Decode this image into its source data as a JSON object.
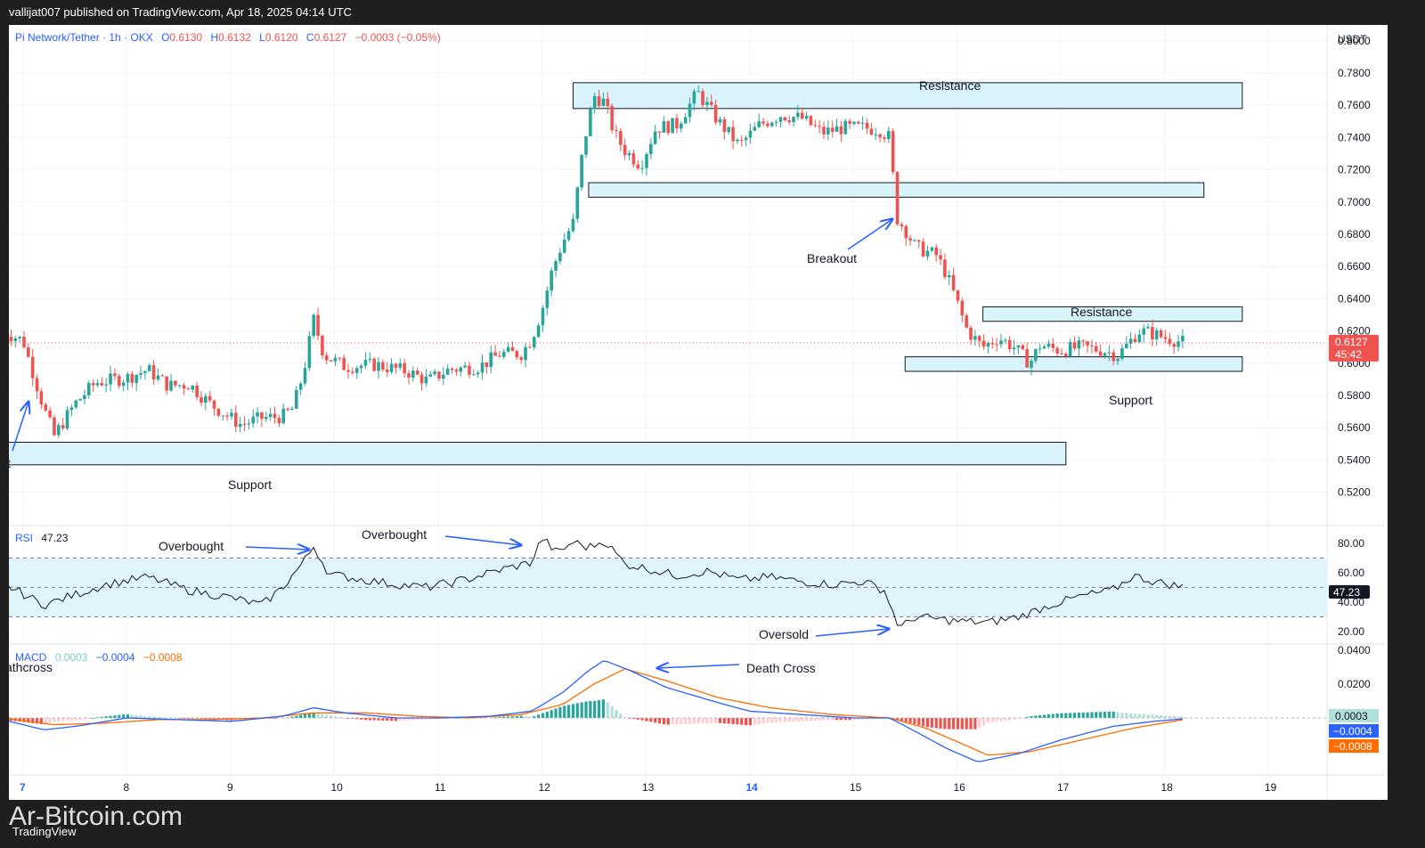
{
  "header": {
    "publisher": "vallijat007 published on TradingView.com, Apr 18, 2025 04:14 UTC"
  },
  "legend": {
    "symbol": "Pi Network/Tether · 1h · OKX",
    "o_label": "O",
    "o": "0.6130",
    "h_label": "H",
    "h": "0.6132",
    "l_label": "L",
    "l": "0.6120",
    "c_label": "C",
    "c": "0.6127",
    "change": "−0.0003 (−0.05%)"
  },
  "currency": "USDT",
  "price_badge": {
    "price": "0.6127",
    "countdown": "45:42"
  },
  "annotations": {
    "resistance_top": "Resistance",
    "resistance_right": "Resistance",
    "support_bottom": "Support",
    "support_right": "Support",
    "breakout": "Breakout",
    "breakout_left_fragment": "t",
    "overbought_1": "Overbought",
    "overbought_2": "Overbought",
    "oversold": "Oversold",
    "death_cross": "Death Cross",
    "deathcross_fragment": "athcross"
  },
  "rsi_legend": {
    "label": "RSI",
    "value": "47.23"
  },
  "macd_legend": {
    "label": "MACD",
    "hist": "0.0003",
    "macd": "−0.0004",
    "signal": "−0.0008"
  },
  "macd_badges": {
    "hist": "0.0003",
    "macd": "−0.0004",
    "signal": "−0.0008"
  },
  "rsi_badge": "47.23",
  "footer": {
    "watermark": "Ar-Bitcoin.com",
    "logo": "TradingView"
  },
  "colors": {
    "up": "#26a69a",
    "down": "#ef5350",
    "zone_fill": "#d9f3fa",
    "macd_line": "#2962ff",
    "signal_line": "#ff6d00",
    "rsi_band": "#e0f5fb",
    "arrow": "#2962ff",
    "price_line": "#ef5350"
  },
  "chart_data": {
    "type": "candlestick",
    "interval": "1h",
    "price_axis": {
      "ticks": [
        "0.8000",
        "0.7800",
        "0.7600",
        "0.7400",
        "0.7200",
        "0.7000",
        "0.6800",
        "0.6600",
        "0.6400",
        "0.6200",
        "0.6000",
        "0.5800",
        "0.5600",
        "0.5400",
        "0.5200"
      ],
      "ylim": [
        0.51,
        0.81
      ]
    },
    "rsi_axis": {
      "ticks": [
        "80.00",
        "60.00",
        "40.00",
        "20.00"
      ],
      "overbought": 70,
      "oversold": 30
    },
    "macd_axis": {
      "ticks": [
        "0.0400",
        "0.0200"
      ]
    },
    "time_axis": [
      "7",
      "8",
      "9",
      "10",
      "11",
      "12",
      "13",
      "14",
      "15",
      "16",
      "17",
      "18",
      "19"
    ],
    "zones": [
      {
        "label": "Resistance",
        "from_day": 12.3,
        "to_day": 18.75,
        "low": 0.758,
        "high": 0.774
      },
      {
        "label": "",
        "from_day": 12.45,
        "to_day": 18.38,
        "low": 0.703,
        "high": 0.712
      },
      {
        "label": "Resistance",
        "from_day": 16.25,
        "to_day": 18.75,
        "low": 0.626,
        "high": 0.635
      },
      {
        "label": "Support",
        "from_day": 15.5,
        "to_day": 18.75,
        "low": 0.595,
        "high": 0.604
      },
      {
        "label": "Support",
        "from_day": 6.85,
        "to_day": 17.05,
        "low": 0.537,
        "high": 0.551
      }
    ],
    "waypoints_close": [
      [
        6.8,
        0.62
      ],
      [
        7.0,
        0.614
      ],
      [
        7.2,
        0.572
      ],
      [
        7.3,
        0.555
      ],
      [
        7.5,
        0.575
      ],
      [
        7.7,
        0.588
      ],
      [
        8.0,
        0.591
      ],
      [
        8.2,
        0.596
      ],
      [
        8.4,
        0.586
      ],
      [
        8.6,
        0.587
      ],
      [
        8.8,
        0.575
      ],
      [
        9.0,
        0.566
      ],
      [
        9.1,
        0.562
      ],
      [
        9.3,
        0.566
      ],
      [
        9.5,
        0.567
      ],
      [
        9.6,
        0.572
      ],
      [
        9.7,
        0.594
      ],
      [
        9.8,
        0.627
      ],
      [
        9.9,
        0.605
      ],
      [
        10.1,
        0.598
      ],
      [
        10.4,
        0.599
      ],
      [
        10.7,
        0.595
      ],
      [
        10.9,
        0.589
      ],
      [
        11.1,
        0.596
      ],
      [
        11.4,
        0.598
      ],
      [
        11.6,
        0.606
      ],
      [
        11.8,
        0.606
      ],
      [
        11.9,
        0.615
      ],
      [
        12.0,
        0.633
      ],
      [
        12.1,
        0.658
      ],
      [
        12.2,
        0.675
      ],
      [
        12.3,
        0.687
      ],
      [
        12.4,
        0.735
      ],
      [
        12.5,
        0.766
      ],
      [
        12.6,
        0.762
      ],
      [
        12.7,
        0.742
      ],
      [
        12.8,
        0.732
      ],
      [
        12.95,
        0.723
      ],
      [
        13.1,
        0.746
      ],
      [
        13.3,
        0.748
      ],
      [
        13.5,
        0.768
      ],
      [
        13.7,
        0.75
      ],
      [
        13.9,
        0.735
      ],
      [
        14.1,
        0.748
      ],
      [
        14.3,
        0.754
      ],
      [
        14.5,
        0.752
      ],
      [
        14.7,
        0.743
      ],
      [
        14.9,
        0.746
      ],
      [
        15.1,
        0.746
      ],
      [
        15.25,
        0.745
      ],
      [
        15.35,
        0.74
      ],
      [
        15.42,
        0.69
      ],
      [
        15.5,
        0.683
      ],
      [
        15.6,
        0.672
      ],
      [
        15.8,
        0.667
      ],
      [
        15.9,
        0.655
      ],
      [
        16.0,
        0.638
      ],
      [
        16.1,
        0.62
      ],
      [
        16.25,
        0.61
      ],
      [
        16.4,
        0.616
      ],
      [
        16.55,
        0.61
      ],
      [
        16.7,
        0.6
      ],
      [
        16.8,
        0.611
      ],
      [
        17.0,
        0.608
      ],
      [
        17.2,
        0.61
      ],
      [
        17.4,
        0.608
      ],
      [
        17.55,
        0.605
      ],
      [
        17.65,
        0.612
      ],
      [
        17.75,
        0.62
      ],
      [
        17.85,
        0.619
      ],
      [
        18.0,
        0.616
      ],
      [
        18.2,
        0.6127
      ]
    ],
    "rsi_waypoints": [
      [
        6.8,
        53
      ],
      [
        7.2,
        38
      ],
      [
        7.5,
        45
      ],
      [
        7.8,
        52
      ],
      [
        8.2,
        57
      ],
      [
        8.6,
        48
      ],
      [
        9.0,
        43
      ],
      [
        9.3,
        38
      ],
      [
        9.5,
        50
      ],
      [
        9.7,
        67
      ],
      [
        9.8,
        78
      ],
      [
        9.95,
        59
      ],
      [
        10.3,
        55
      ],
      [
        10.6,
        52
      ],
      [
        10.9,
        50
      ],
      [
        11.3,
        56
      ],
      [
        11.6,
        62
      ],
      [
        11.9,
        67
      ],
      [
        12.0,
        84
      ],
      [
        12.15,
        73
      ],
      [
        12.3,
        81
      ],
      [
        12.45,
        77
      ],
      [
        12.6,
        82
      ],
      [
        12.8,
        66
      ],
      [
        13.0,
        63
      ],
      [
        13.3,
        58
      ],
      [
        13.6,
        61
      ],
      [
        13.9,
        55
      ],
      [
        14.2,
        57
      ],
      [
        14.5,
        54
      ],
      [
        14.8,
        52
      ],
      [
        15.1,
        54
      ],
      [
        15.3,
        48
      ],
      [
        15.4,
        30
      ],
      [
        15.45,
        22
      ],
      [
        15.6,
        30
      ],
      [
        16.0,
        27
      ],
      [
        16.3,
        26
      ],
      [
        16.6,
        30
      ],
      [
        16.9,
        38
      ],
      [
        17.2,
        44
      ],
      [
        17.5,
        48
      ],
      [
        17.7,
        58
      ],
      [
        17.9,
        54
      ],
      [
        18.2,
        50
      ]
    ],
    "macd_waypoints": [
      [
        6.8,
        -0.001
      ],
      [
        7.2,
        -0.007
      ],
      [
        7.5,
        -0.005
      ],
      [
        8.0,
        0.0
      ],
      [
        8.5,
        -0.001
      ],
      [
        9.0,
        -0.002
      ],
      [
        9.5,
        0.001
      ],
      [
        9.8,
        0.006
      ],
      [
        10.1,
        0.003
      ],
      [
        10.6,
        0.0
      ],
      [
        11.0,
        0.0
      ],
      [
        11.5,
        0.001
      ],
      [
        11.9,
        0.004
      ],
      [
        12.2,
        0.015
      ],
      [
        12.45,
        0.028
      ],
      [
        12.6,
        0.034
      ],
      [
        12.85,
        0.028
      ],
      [
        13.2,
        0.018
      ],
      [
        13.7,
        0.009
      ],
      [
        14.0,
        0.004
      ],
      [
        14.5,
        0.002
      ],
      [
        15.0,
        0.0
      ],
      [
        15.35,
        0.0
      ],
      [
        15.6,
        -0.008
      ],
      [
        15.9,
        -0.018
      ],
      [
        16.2,
        -0.026
      ],
      [
        16.6,
        -0.021
      ],
      [
        17.0,
        -0.013
      ],
      [
        17.5,
        -0.005
      ],
      [
        17.9,
        -0.002
      ],
      [
        18.2,
        -0.0004
      ]
    ],
    "signal_waypoints": [
      [
        6.8,
        0.0
      ],
      [
        7.3,
        -0.004
      ],
      [
        7.8,
        -0.003
      ],
      [
        8.3,
        -0.001
      ],
      [
        8.8,
        -0.001
      ],
      [
        9.3,
        0.0
      ],
      [
        9.8,
        0.003
      ],
      [
        10.3,
        0.003
      ],
      [
        10.8,
        0.001
      ],
      [
        11.3,
        0.0
      ],
      [
        11.8,
        0.002
      ],
      [
        12.2,
        0.008
      ],
      [
        12.5,
        0.02
      ],
      [
        12.8,
        0.029
      ],
      [
        13.2,
        0.022
      ],
      [
        13.7,
        0.012
      ],
      [
        14.2,
        0.006
      ],
      [
        14.8,
        0.002
      ],
      [
        15.35,
        0.0
      ],
      [
        15.7,
        -0.006
      ],
      [
        16.0,
        -0.014
      ],
      [
        16.3,
        -0.022
      ],
      [
        16.7,
        -0.02
      ],
      [
        17.2,
        -0.013
      ],
      [
        17.7,
        -0.006
      ],
      [
        18.2,
        -0.0008
      ]
    ]
  }
}
